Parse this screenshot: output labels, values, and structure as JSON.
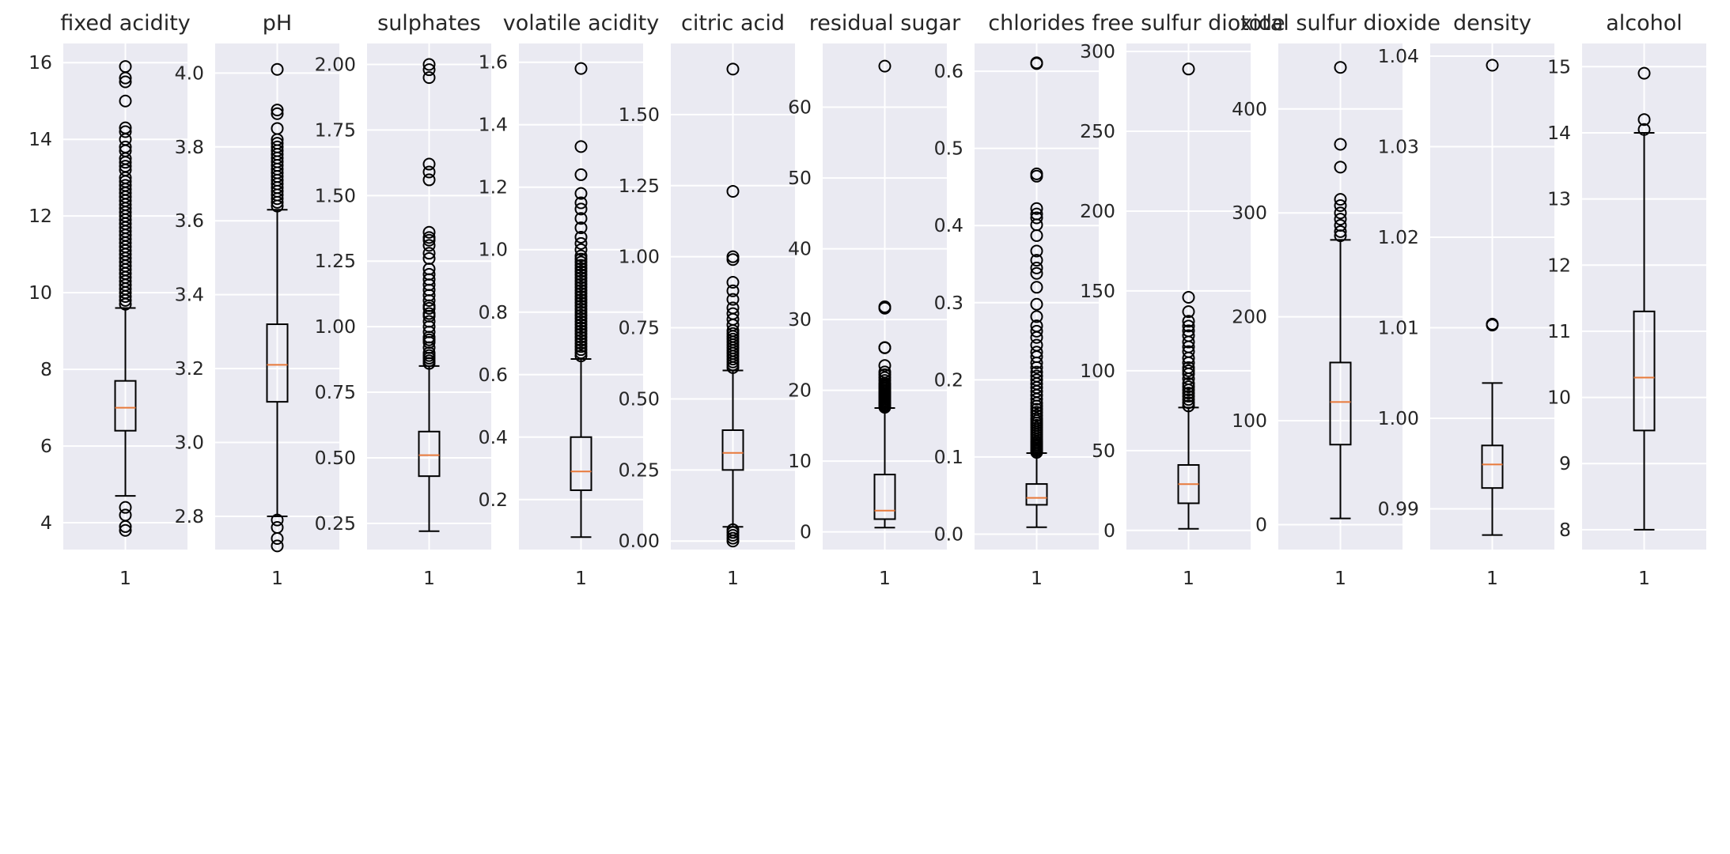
{
  "chart_data": {
    "type": "box",
    "x_tick_label": "1",
    "style": {
      "panel_bg": "#eaeaf2",
      "grid": "#ffffff",
      "box": "#000000",
      "median": "#e8793a",
      "text": "#262626"
    },
    "grid": true,
    "panels": [
      {
        "title": "fixed acidity",
        "ylim": [
          3.3,
          16.5
        ],
        "ticks": [
          4,
          6,
          8,
          10,
          12,
          14,
          16
        ],
        "tick_labels": [
          "4",
          "6",
          "8",
          "10",
          "12",
          "14",
          "16"
        ],
        "whisker_low": 4.7,
        "q1": 6.4,
        "median": 7.0,
        "q3": 7.7,
        "whisker_high": 9.6,
        "outliers": [
          3.8,
          3.9,
          4.2,
          4.4,
          9.7,
          9.8,
          9.9,
          10.0,
          10.1,
          10.2,
          10.3,
          10.4,
          10.5,
          10.6,
          10.7,
          10.8,
          10.9,
          11.0,
          11.1,
          11.2,
          11.3,
          11.4,
          11.5,
          11.6,
          11.7,
          11.8,
          11.9,
          12.0,
          12.1,
          12.2,
          12.3,
          12.4,
          12.5,
          12.6,
          12.7,
          12.8,
          12.9,
          13.0,
          13.2,
          13.3,
          13.4,
          13.5,
          13.7,
          13.8,
          14.0,
          14.2,
          14.3,
          15.0,
          15.5,
          15.6,
          15.9
        ]
      },
      {
        "title": "pH",
        "ylim": [
          2.71,
          4.08
        ],
        "ticks": [
          2.8,
          3.0,
          3.2,
          3.4,
          3.6,
          3.8,
          4.0
        ],
        "tick_labels": [
          "2.8",
          "3.0",
          "3.2",
          "3.4",
          "3.6",
          "3.8",
          "4.0"
        ],
        "whisker_low": 2.8,
        "q1": 3.11,
        "median": 3.21,
        "q3": 3.32,
        "whisker_high": 3.63,
        "outliers": [
          2.72,
          2.74,
          2.77,
          2.79,
          3.64,
          3.65,
          3.66,
          3.67,
          3.68,
          3.69,
          3.7,
          3.71,
          3.72,
          3.73,
          3.74,
          3.75,
          3.76,
          3.77,
          3.78,
          3.79,
          3.8,
          3.81,
          3.82,
          3.85,
          3.89,
          3.9,
          4.01
        ]
      },
      {
        "title": "sulphates",
        "ylim": [
          0.15,
          2.08
        ],
        "ticks": [
          0.25,
          0.5,
          0.75,
          1.0,
          1.25,
          1.5,
          1.75,
          2.0
        ],
        "tick_labels": [
          "0.25",
          "0.50",
          "0.75",
          "1.00",
          "1.25",
          "1.50",
          "1.75",
          "2.00"
        ],
        "whisker_low": 0.22,
        "q1": 0.43,
        "median": 0.51,
        "q3": 0.6,
        "whisker_high": 0.85,
        "outliers": [
          0.86,
          0.87,
          0.88,
          0.89,
          0.9,
          0.92,
          0.94,
          0.95,
          0.96,
          0.98,
          1.0,
          1.02,
          1.04,
          1.05,
          1.07,
          1.08,
          1.1,
          1.12,
          1.14,
          1.16,
          1.18,
          1.2,
          1.22,
          1.26,
          1.28,
          1.31,
          1.33,
          1.34,
          1.36,
          1.56,
          1.59,
          1.62,
          1.95,
          1.98,
          2.0
        ]
      },
      {
        "title": "volatile acidity",
        "ylim": [
          0.04,
          1.66
        ],
        "ticks": [
          0.2,
          0.4,
          0.6,
          0.8,
          1.0,
          1.2,
          1.4,
          1.6
        ],
        "tick_labels": [
          "0.2",
          "0.4",
          "0.6",
          "0.8",
          "1.0",
          "1.2",
          "1.4",
          "1.6"
        ],
        "whisker_low": 0.08,
        "q1": 0.23,
        "median": 0.29,
        "q3": 0.4,
        "whisker_high": 0.65,
        "outliers": [
          0.66,
          0.67,
          0.68,
          0.69,
          0.7,
          0.71,
          0.72,
          0.73,
          0.74,
          0.75,
          0.76,
          0.77,
          0.78,
          0.79,
          0.8,
          0.81,
          0.82,
          0.83,
          0.84,
          0.85,
          0.86,
          0.87,
          0.88,
          0.89,
          0.9,
          0.91,
          0.92,
          0.93,
          0.94,
          0.95,
          0.96,
          0.97,
          0.98,
          1.0,
          1.02,
          1.04,
          1.07,
          1.1,
          1.13,
          1.15,
          1.18,
          1.24,
          1.33,
          1.58
        ]
      },
      {
        "title": "citric acid",
        "ylim": [
          -0.03,
          1.75
        ],
        "ticks": [
          0.0,
          0.25,
          0.5,
          0.75,
          1.0,
          1.25,
          1.5
        ],
        "tick_labels": [
          "0.00",
          "0.25",
          "0.50",
          "0.75",
          "1.00",
          "1.25",
          "1.50"
        ],
        "whisker_low": 0.05,
        "q1": 0.25,
        "median": 0.31,
        "q3": 0.39,
        "whisker_high": 0.6,
        "outliers": [
          0.0,
          0.01,
          0.02,
          0.03,
          0.04,
          0.61,
          0.62,
          0.63,
          0.64,
          0.65,
          0.66,
          0.67,
          0.68,
          0.69,
          0.7,
          0.71,
          0.72,
          0.73,
          0.74,
          0.76,
          0.78,
          0.8,
          0.82,
          0.85,
          0.88,
          0.91,
          0.99,
          1.0,
          1.23,
          1.66
        ]
      },
      {
        "title": "residual sugar",
        "ylim": [
          -2.5,
          69.0
        ],
        "ticks": [
          0,
          10,
          20,
          30,
          40,
          50,
          60
        ],
        "tick_labels": [
          "0",
          "10",
          "20",
          "30",
          "40",
          "50",
          "60"
        ],
        "whisker_low": 0.6,
        "q1": 1.8,
        "median": 3.0,
        "q3": 8.1,
        "whisker_high": 17.5,
        "outliers": [
          17.6,
          17.8,
          18.0,
          18.2,
          18.4,
          18.6,
          18.8,
          19.0,
          19.2,
          19.4,
          19.6,
          19.8,
          20.0,
          20.2,
          20.4,
          20.6,
          20.8,
          21.0,
          21.4,
          21.8,
          22.2,
          22.6,
          23.5,
          26.0,
          26.05,
          31.6,
          31.8,
          65.8
        ]
      },
      {
        "title": "chlorides",
        "ylim": [
          -0.02,
          0.636
        ],
        "ticks": [
          0.0,
          0.1,
          0.2,
          0.3,
          0.4,
          0.5,
          0.6
        ],
        "tick_labels": [
          "0.0",
          "0.1",
          "0.2",
          "0.3",
          "0.4",
          "0.5",
          "0.6"
        ],
        "whisker_low": 0.009,
        "q1": 0.038,
        "median": 0.047,
        "q3": 0.065,
        "whisker_high": 0.105,
        "outliers": [
          0.106,
          0.108,
          0.11,
          0.112,
          0.114,
          0.116,
          0.118,
          0.12,
          0.123,
          0.126,
          0.129,
          0.132,
          0.135,
          0.138,
          0.141,
          0.144,
          0.147,
          0.15,
          0.154,
          0.158,
          0.162,
          0.166,
          0.17,
          0.175,
          0.18,
          0.185,
          0.19,
          0.195,
          0.2,
          0.205,
          0.21,
          0.216,
          0.222,
          0.23,
          0.236,
          0.245,
          0.255,
          0.263,
          0.27,
          0.282,
          0.298,
          0.32,
          0.338,
          0.345,
          0.355,
          0.367,
          0.387,
          0.401,
          0.41,
          0.415,
          0.422,
          0.464,
          0.467,
          0.61,
          0.611
        ]
      },
      {
        "title": "free sulfur dioxide",
        "ylim": [
          -12,
          305
        ],
        "ticks": [
          0,
          50,
          100,
          150,
          200,
          250,
          300
        ],
        "tick_labels": [
          "0",
          "50",
          "100",
          "150",
          "200",
          "250",
          "300"
        ],
        "whisker_low": 1,
        "q1": 17,
        "median": 29,
        "q3": 41,
        "whisker_high": 77,
        "outliers": [
          78,
          80,
          82,
          84,
          86,
          88,
          90,
          92,
          95,
          98,
          100,
          102,
          105,
          108,
          112,
          115,
          118,
          122,
          125,
          128,
          131,
          137,
          146,
          289
        ]
      },
      {
        "title": "total sulfur dioxide",
        "ylim": [
          -24,
          463
        ],
        "ticks": [
          0,
          100,
          200,
          300,
          400
        ],
        "tick_labels": [
          "0",
          "100",
          "200",
          "300",
          "400"
        ],
        "whisker_low": 6,
        "q1": 77,
        "median": 118,
        "q3": 156,
        "whisker_high": 274,
        "outliers": [
          278,
          282,
          288,
          294,
          300,
          307,
          313,
          344,
          366,
          440
        ]
      },
      {
        "title": "density",
        "ylim": [
          0.9855,
          1.0414
        ],
        "ticks": [
          0.99,
          1.0,
          1.01,
          1.02,
          1.03,
          1.04
        ],
        "tick_labels": [
          "0.99",
          "1.00",
          "1.01",
          "1.02",
          "1.03",
          "1.04"
        ],
        "whisker_low": 0.9871,
        "q1": 0.9923,
        "median": 0.9949,
        "q3": 0.997,
        "whisker_high": 1.0039,
        "outliers": [
          1.0103,
          1.0104,
          1.039
        ]
      },
      {
        "title": "alcohol",
        "ylim": [
          7.7,
          15.35
        ],
        "ticks": [
          8,
          9,
          10,
          11,
          12,
          13,
          14,
          15
        ],
        "tick_labels": [
          "8",
          "9",
          "10",
          "11",
          "12",
          "13",
          "14",
          "15"
        ],
        "whisker_low": 8.0,
        "q1": 9.5,
        "median": 10.3,
        "q3": 11.3,
        "whisker_high": 14.0,
        "outliers": [
          14.05,
          14.2,
          14.9
        ]
      }
    ]
  }
}
